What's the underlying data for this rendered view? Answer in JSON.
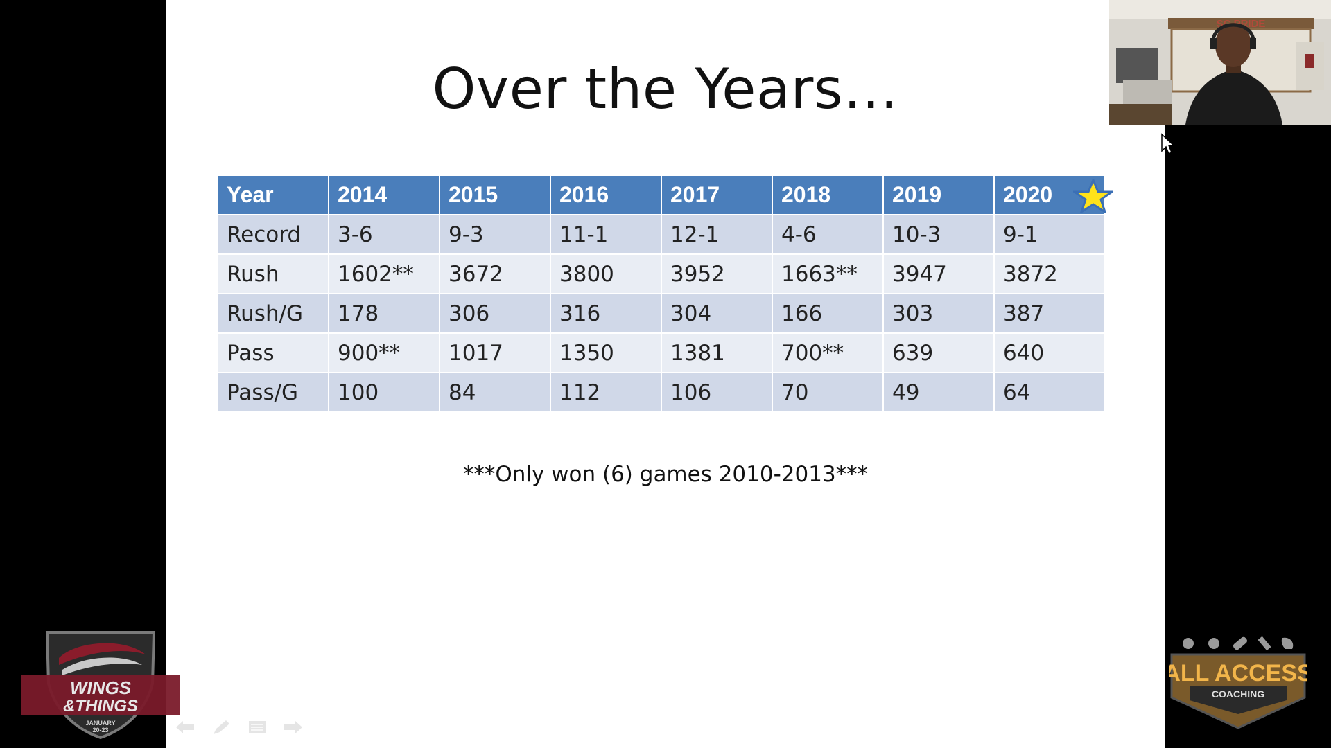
{
  "slide": {
    "title": "Over the Years…",
    "footnote": "***Only won (6) games 2010-2013***",
    "table": {
      "header": [
        "Year",
        "2014",
        "2015",
        "2016",
        "2017",
        "2018",
        "2019",
        "2020"
      ],
      "rows": [
        [
          "Record",
          "3-6",
          "9-3",
          "11-1",
          "12-1",
          "4-6",
          "10-3",
          "9-1"
        ],
        [
          "Rush",
          "1602**",
          "3672",
          "3800",
          "3952",
          "1663**",
          "3947",
          "3872"
        ],
        [
          "Rush/G",
          "178",
          "306",
          "316",
          "304",
          "166",
          "303",
          "387"
        ],
        [
          "Pass",
          "900**",
          "1017",
          "1350",
          "1381",
          "700**",
          "639",
          "640"
        ],
        [
          "Pass/G",
          "100",
          "84",
          "112",
          "106",
          "70",
          "49",
          "64"
        ]
      ]
    },
    "colors": {
      "header_bg": "#4a7ebb",
      "row_odd": "#d0d8e8",
      "row_even": "#e9edf4",
      "star": "#ffe21a"
    },
    "controls": [
      "back-arrow-icon",
      "pen-icon",
      "menu-icon",
      "forward-arrow-icon"
    ]
  },
  "webcam": {
    "sign_text": "SC PRIDE"
  },
  "logos": {
    "left": {
      "line1": "WINGS",
      "line2": "&THINGS",
      "line3": "JANUARY",
      "line4": "20-23"
    },
    "right": {
      "line1": "ALL ACCESS",
      "line2": "COACHING"
    }
  }
}
